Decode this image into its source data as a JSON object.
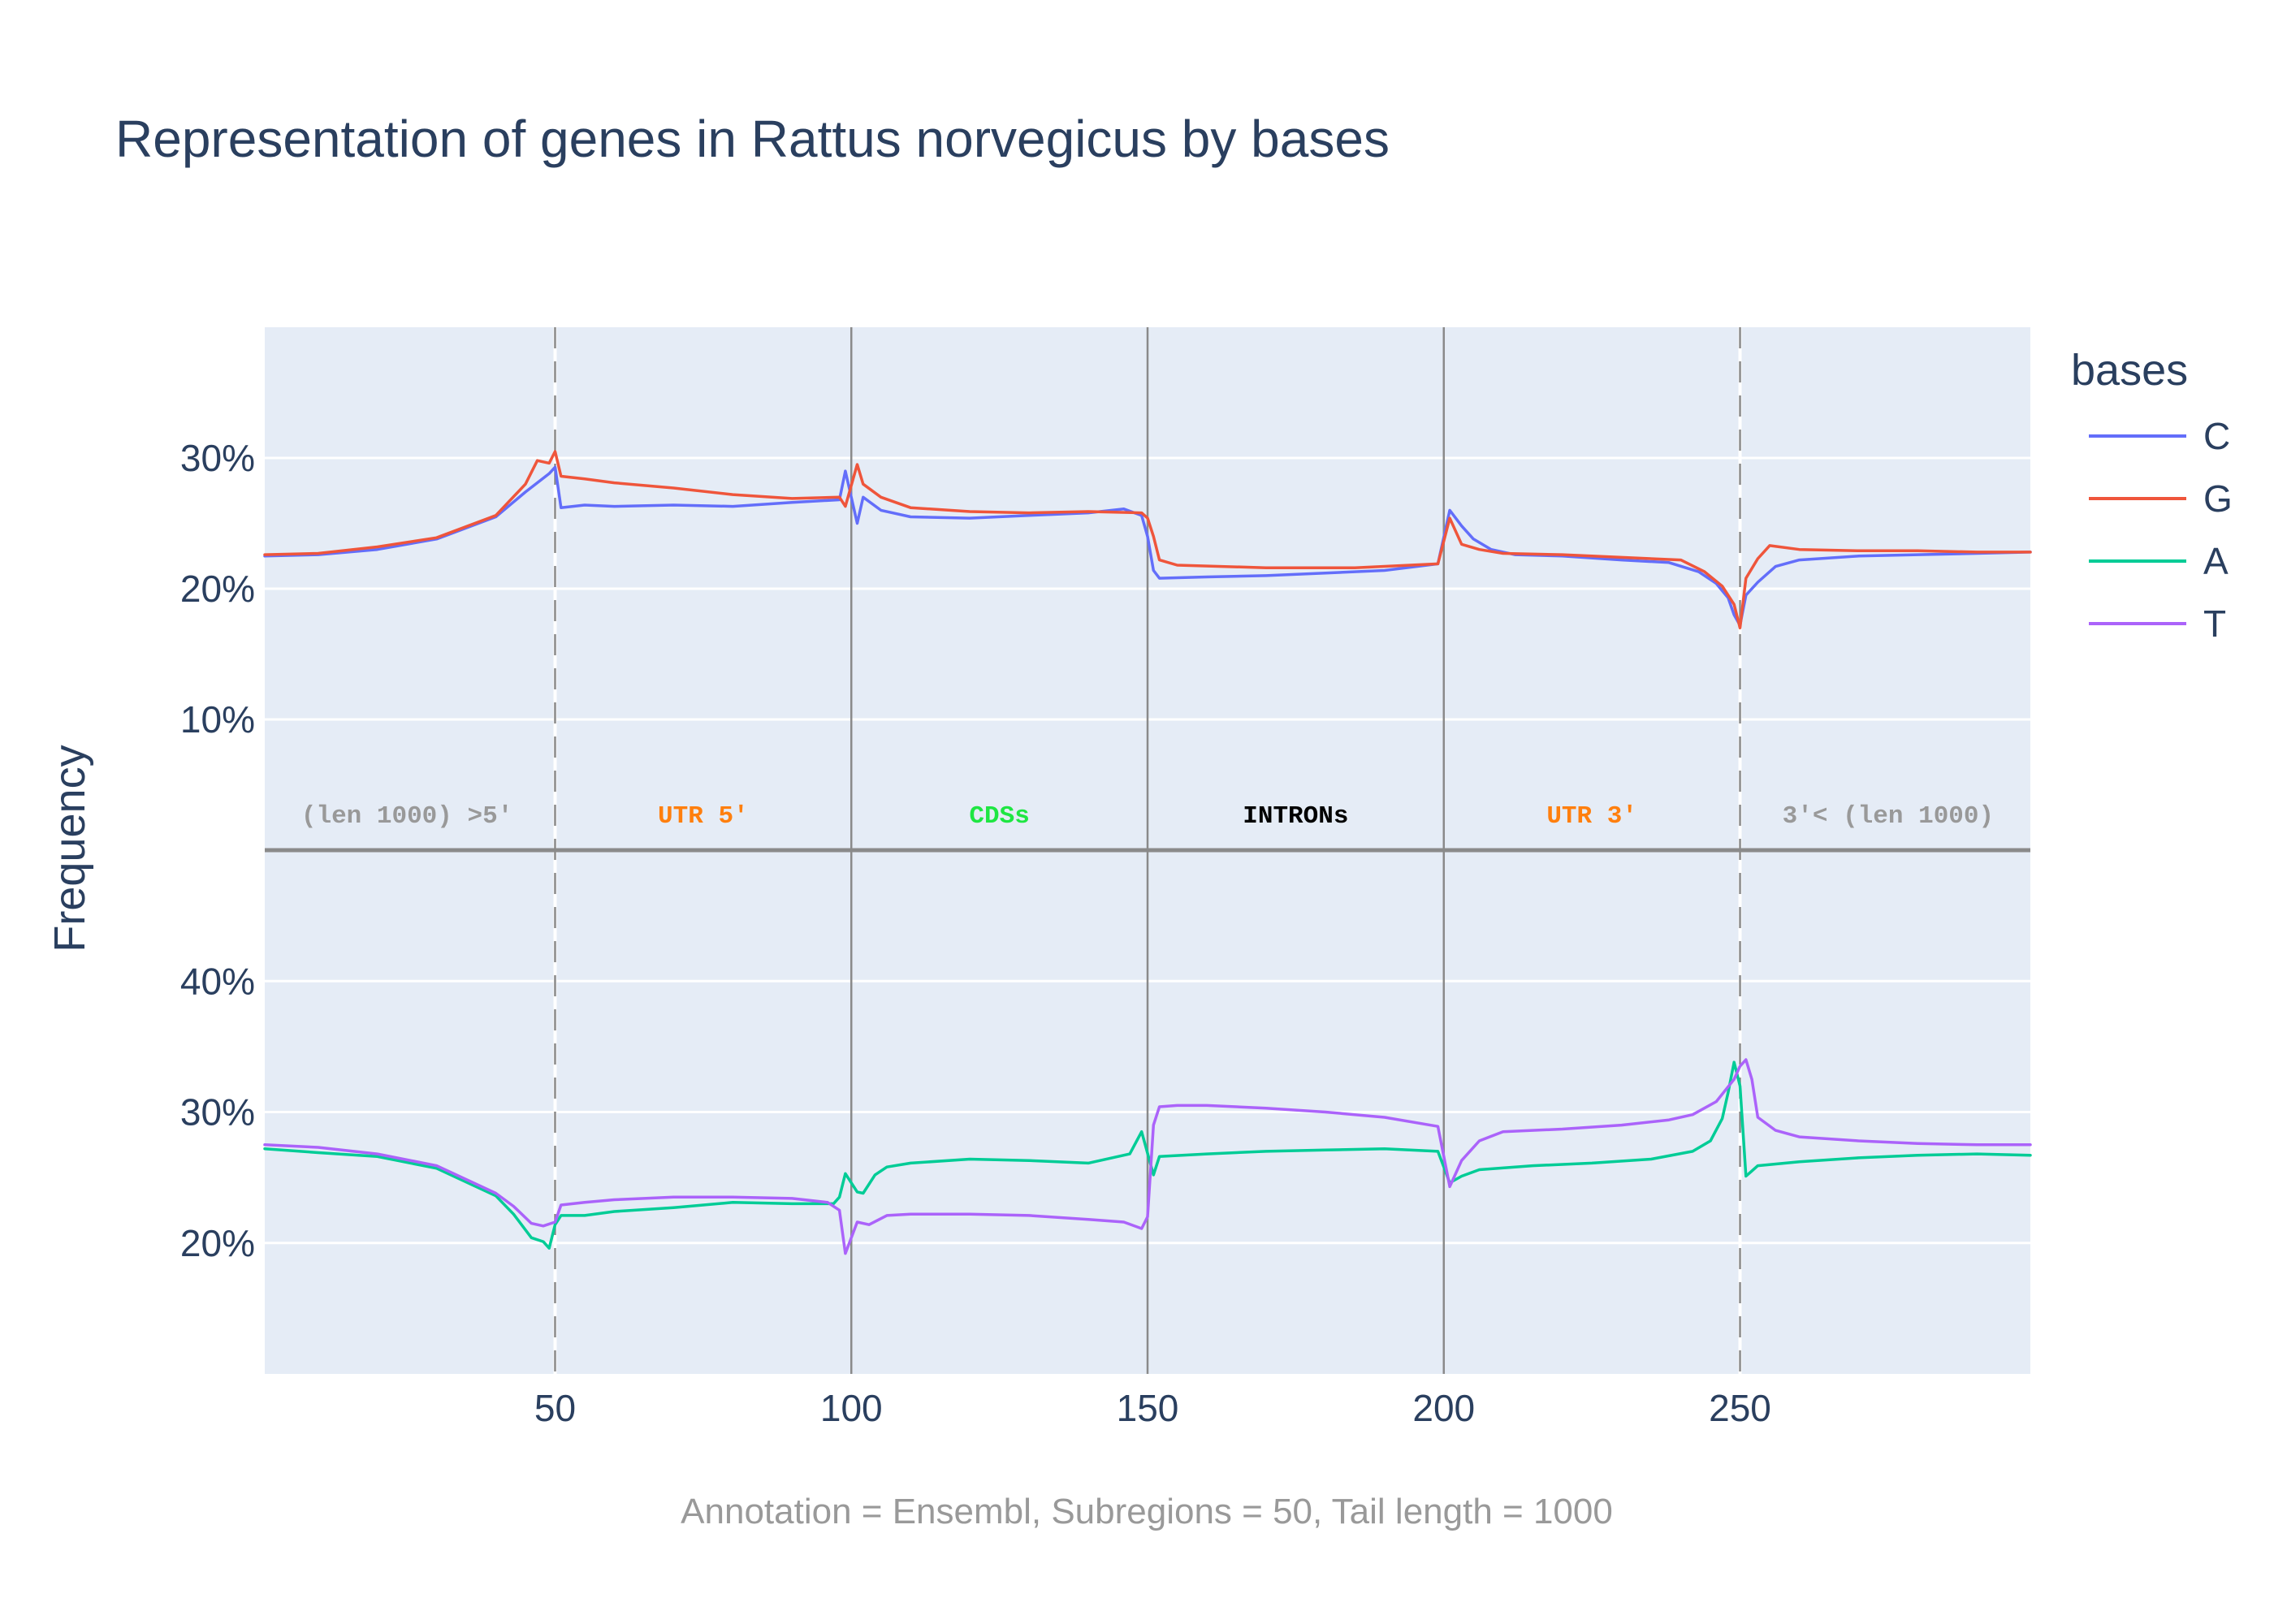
{
  "chart_data": {
    "type": "line",
    "title": "Representation of genes in Rattus norvegicus by bases",
    "ylabel": "Frequency",
    "caption": "Annotation = Ensembl, Subregions = 50, Tail length = 1000",
    "legend": {
      "title": "bases",
      "placement": "right",
      "entries": [
        {
          "name": "C",
          "color": "#636efa"
        },
        {
          "name": "G",
          "color": "#ef553b"
        },
        {
          "name": "A",
          "color": "#00cc96"
        },
        {
          "name": "T",
          "color": "#ab63fa"
        }
      ]
    },
    "xlim": [
      1,
      299
    ],
    "x_ticks": [
      50,
      100,
      150,
      200,
      250
    ],
    "x_tick_labels": [
      "50",
      "100",
      "150",
      "200",
      "250"
    ],
    "grid": true,
    "region_boundaries": [
      {
        "x": 50,
        "style": "dashed"
      },
      {
        "x": 100,
        "style": "solid"
      },
      {
        "x": 150,
        "style": "solid"
      },
      {
        "x": 200,
        "style": "solid"
      },
      {
        "x": 250,
        "style": "dashed"
      }
    ],
    "region_labels": [
      {
        "text": "(len 1000) >5'",
        "x": 25,
        "color": "#999999"
      },
      {
        "text": "UTR 5'",
        "x": 75,
        "color": "#ff7f0e"
      },
      {
        "text": "CDSs",
        "x": 125,
        "color": "#1ee642"
      },
      {
        "text": "INTRONs",
        "x": 175,
        "color": "#000000"
      },
      {
        "text": "UTR 3'",
        "x": 225,
        "color": "#ff7f0e"
      },
      {
        "text": "3'< (len 1000)",
        "x": 275,
        "color": "#999999"
      }
    ],
    "panels": [
      {
        "name": "top",
        "ylim": [
          0,
          40
        ],
        "y_ticks": [
          10,
          20,
          30
        ],
        "y_tick_labels": [
          "10%",
          "20%",
          "30%"
        ],
        "series_names": [
          "C",
          "G"
        ]
      },
      {
        "name": "bottom",
        "ylim": [
          10,
          50
        ],
        "y_ticks": [
          20,
          30,
          40
        ],
        "y_tick_labels": [
          "20%",
          "30%",
          "40%"
        ],
        "series_names": [
          "A",
          "T"
        ]
      }
    ],
    "series": [
      {
        "name": "C",
        "panel": "top",
        "color": "#636efa",
        "points": [
          [
            1,
            22.5
          ],
          [
            10,
            22.6
          ],
          [
            20,
            23.0
          ],
          [
            30,
            23.8
          ],
          [
            40,
            25.5
          ],
          [
            45,
            27.4
          ],
          [
            49,
            28.8
          ],
          [
            50,
            29.3
          ],
          [
            51,
            26.2
          ],
          [
            55,
            26.4
          ],
          [
            60,
            26.3
          ],
          [
            70,
            26.4
          ],
          [
            80,
            26.3
          ],
          [
            90,
            26.6
          ],
          [
            98,
            26.8
          ],
          [
            99,
            29.0
          ],
          [
            101,
            25.0
          ],
          [
            102,
            27.0
          ],
          [
            105,
            26.0
          ],
          [
            110,
            25.5
          ],
          [
            120,
            25.4
          ],
          [
            130,
            25.6
          ],
          [
            140,
            25.8
          ],
          [
            146,
            26.1
          ],
          [
            149,
            25.6
          ],
          [
            150,
            24.0
          ],
          [
            151,
            21.4
          ],
          [
            152,
            20.8
          ],
          [
            160,
            20.9
          ],
          [
            170,
            21.0
          ],
          [
            180,
            21.2
          ],
          [
            190,
            21.4
          ],
          [
            199,
            21.9
          ],
          [
            201,
            26.0
          ],
          [
            203,
            24.8
          ],
          [
            205,
            23.8
          ],
          [
            208,
            23.0
          ],
          [
            212,
            22.6
          ],
          [
            220,
            22.5
          ],
          [
            230,
            22.2
          ],
          [
            238,
            22.0
          ],
          [
            243,
            21.3
          ],
          [
            246,
            20.4
          ],
          [
            248,
            19.3
          ],
          [
            249,
            18.0
          ],
          [
            250,
            17.2
          ],
          [
            251,
            19.5
          ],
          [
            253,
            20.5
          ],
          [
            256,
            21.7
          ],
          [
            260,
            22.2
          ],
          [
            270,
            22.5
          ],
          [
            280,
            22.6
          ],
          [
            290,
            22.7
          ],
          [
            299,
            22.8
          ]
        ]
      },
      {
        "name": "G",
        "panel": "top",
        "color": "#ef553b",
        "points": [
          [
            1,
            22.6
          ],
          [
            10,
            22.7
          ],
          [
            20,
            23.2
          ],
          [
            30,
            23.9
          ],
          [
            40,
            25.6
          ],
          [
            45,
            28.0
          ],
          [
            47,
            29.8
          ],
          [
            49,
            29.6
          ],
          [
            50,
            30.5
          ],
          [
            51,
            28.6
          ],
          [
            55,
            28.4
          ],
          [
            60,
            28.1
          ],
          [
            70,
            27.7
          ],
          [
            80,
            27.2
          ],
          [
            90,
            26.9
          ],
          [
            98,
            27.0
          ],
          [
            99,
            26.3
          ],
          [
            101,
            29.5
          ],
          [
            102,
            28.0
          ],
          [
            105,
            27.0
          ],
          [
            110,
            26.2
          ],
          [
            120,
            25.9
          ],
          [
            130,
            25.8
          ],
          [
            140,
            25.9
          ],
          [
            149,
            25.8
          ],
          [
            150,
            25.4
          ],
          [
            151,
            24.0
          ],
          [
            152,
            22.2
          ],
          [
            155,
            21.8
          ],
          [
            170,
            21.6
          ],
          [
            185,
            21.6
          ],
          [
            199,
            21.9
          ],
          [
            201,
            25.4
          ],
          [
            203,
            23.4
          ],
          [
            206,
            23.0
          ],
          [
            210,
            22.7
          ],
          [
            220,
            22.6
          ],
          [
            230,
            22.4
          ],
          [
            240,
            22.2
          ],
          [
            244,
            21.3
          ],
          [
            247,
            20.2
          ],
          [
            249,
            18.8
          ],
          [
            250,
            17.0
          ],
          [
            251,
            20.8
          ],
          [
            253,
            22.3
          ],
          [
            255,
            23.3
          ],
          [
            260,
            23.0
          ],
          [
            270,
            22.9
          ],
          [
            280,
            22.9
          ],
          [
            290,
            22.8
          ],
          [
            299,
            22.8
          ]
        ]
      },
      {
        "name": "A",
        "panel": "bottom",
        "color": "#00cc96",
        "points": [
          [
            1,
            27.2
          ],
          [
            10,
            26.9
          ],
          [
            20,
            26.6
          ],
          [
            30,
            25.7
          ],
          [
            40,
            23.6
          ],
          [
            43,
            22.2
          ],
          [
            46,
            20.4
          ],
          [
            48,
            20.1
          ],
          [
            49,
            19.6
          ],
          [
            50,
            21.4
          ],
          [
            51,
            22.1
          ],
          [
            55,
            22.1
          ],
          [
            60,
            22.4
          ],
          [
            70,
            22.7
          ],
          [
            80,
            23.1
          ],
          [
            90,
            23.0
          ],
          [
            97,
            23.0
          ],
          [
            98,
            23.5
          ],
          [
            99,
            25.3
          ],
          [
            101,
            23.9
          ],
          [
            102,
            23.8
          ],
          [
            104,
            25.2
          ],
          [
            106,
            25.8
          ],
          [
            110,
            26.1
          ],
          [
            120,
            26.4
          ],
          [
            130,
            26.3
          ],
          [
            140,
            26.1
          ],
          [
            147,
            26.8
          ],
          [
            149,
            28.5
          ],
          [
            151,
            25.2
          ],
          [
            152,
            26.6
          ],
          [
            160,
            26.8
          ],
          [
            170,
            27.0
          ],
          [
            180,
            27.1
          ],
          [
            190,
            27.2
          ],
          [
            199,
            27.0
          ],
          [
            201,
            24.6
          ],
          [
            203,
            25.1
          ],
          [
            206,
            25.6
          ],
          [
            215,
            25.9
          ],
          [
            225,
            26.1
          ],
          [
            235,
            26.4
          ],
          [
            242,
            27.0
          ],
          [
            245,
            27.8
          ],
          [
            247,
            29.5
          ],
          [
            248,
            31.5
          ],
          [
            249,
            33.8
          ],
          [
            250,
            32.0
          ],
          [
            251,
            25.1
          ],
          [
            253,
            25.9
          ],
          [
            260,
            26.2
          ],
          [
            270,
            26.5
          ],
          [
            280,
            26.7
          ],
          [
            290,
            26.8
          ],
          [
            299,
            26.7
          ]
        ]
      },
      {
        "name": "T",
        "panel": "bottom",
        "color": "#ab63fa",
        "points": [
          [
            1,
            27.5
          ],
          [
            10,
            27.3
          ],
          [
            20,
            26.8
          ],
          [
            30,
            25.9
          ],
          [
            40,
            23.8
          ],
          [
            43,
            22.8
          ],
          [
            46,
            21.5
          ],
          [
            48,
            21.3
          ],
          [
            50,
            21.6
          ],
          [
            51,
            22.9
          ],
          [
            55,
            23.1
          ],
          [
            60,
            23.3
          ],
          [
            70,
            23.5
          ],
          [
            80,
            23.5
          ],
          [
            90,
            23.4
          ],
          [
            96,
            23.1
          ],
          [
            98,
            22.5
          ],
          [
            99,
            19.2
          ],
          [
            101,
            21.6
          ],
          [
            103,
            21.4
          ],
          [
            106,
            22.1
          ],
          [
            110,
            22.2
          ],
          [
            120,
            22.2
          ],
          [
            130,
            22.1
          ],
          [
            140,
            21.8
          ],
          [
            146,
            21.6
          ],
          [
            149,
            21.1
          ],
          [
            150,
            22.0
          ],
          [
            151,
            29.0
          ],
          [
            152,
            30.4
          ],
          [
            155,
            30.5
          ],
          [
            160,
            30.5
          ],
          [
            170,
            30.3
          ],
          [
            180,
            30.0
          ],
          [
            190,
            29.6
          ],
          [
            199,
            28.9
          ],
          [
            201,
            24.3
          ],
          [
            203,
            26.3
          ],
          [
            206,
            27.8
          ],
          [
            210,
            28.5
          ],
          [
            220,
            28.7
          ],
          [
            230,
            29.0
          ],
          [
            238,
            29.4
          ],
          [
            242,
            29.8
          ],
          [
            246,
            30.8
          ],
          [
            249,
            32.5
          ],
          [
            250,
            33.5
          ],
          [
            251,
            34.0
          ],
          [
            252,
            32.5
          ],
          [
            253,
            29.6
          ],
          [
            256,
            28.6
          ],
          [
            260,
            28.1
          ],
          [
            270,
            27.8
          ],
          [
            280,
            27.6
          ],
          [
            290,
            27.5
          ],
          [
            299,
            27.5
          ]
        ]
      }
    ]
  }
}
